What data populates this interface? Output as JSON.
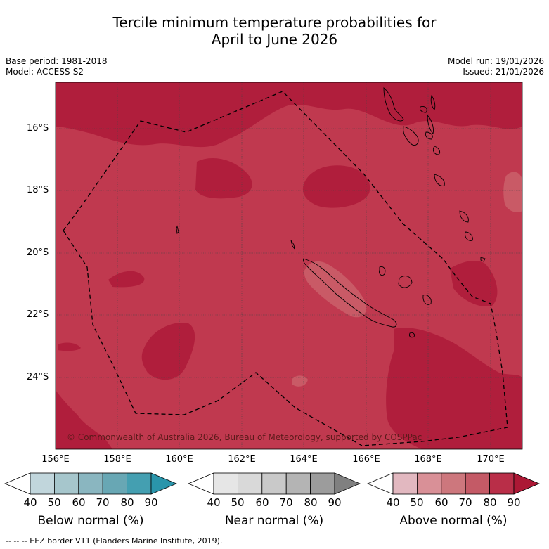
{
  "title_line1": "Tercile minimum temperature probabilities for",
  "title_line2": "April to June 2026",
  "base_period": "Base period: 1981-2018",
  "model": "Model: ACCESS-S2",
  "model_run": "Model run: 19/01/2026",
  "issued": "Issued: 21/01/2026",
  "copyright": "© Commonwealth of Australia 2026, Bureau of Meteorology, supported by COSPPac",
  "footer": "--  --  -- EEZ border V11 (Flanders Marine Institute, 2019).",
  "lat_labels": [
    "16°S",
    "18°S",
    "20°S",
    "22°S",
    "24°S"
  ],
  "lon_labels": [
    "156°E",
    "158°E",
    "160°E",
    "162°E",
    "164°E",
    "166°E",
    "168°E",
    "170°E"
  ],
  "colorbars": [
    {
      "title": "Below normal (%)",
      "ticks": [
        "40",
        "50",
        "60",
        "70",
        "80",
        "90"
      ],
      "colors": [
        "#ffffff",
        "#c1d6dc",
        "#a6c6cc",
        "#8ab6c0",
        "#68a7b4",
        "#449fb1",
        "#2a95ab"
      ]
    },
    {
      "title": "Near normal (%)",
      "ticks": [
        "40",
        "50",
        "60",
        "70",
        "80",
        "90"
      ],
      "colors": [
        "#ffffff",
        "#e6e6e6",
        "#d9d9d9",
        "#c9c9c9",
        "#b4b4b4",
        "#9c9c9c",
        "#808080"
      ]
    },
    {
      "title": "Above normal (%)",
      "ticks": [
        "40",
        "50",
        "60",
        "70",
        "80",
        "90"
      ],
      "colors": [
        "#ffffff",
        "#e2b8c0",
        "#d99097",
        "#cd777d",
        "#c45a66",
        "#b92e48",
        "#ac1835"
      ]
    }
  ],
  "map_colors": {
    "class_70_80": "#c0394f",
    "class_80_90": "#b01e3c",
    "class_60_70": "#c95a66",
    "coast": "#000000"
  }
}
